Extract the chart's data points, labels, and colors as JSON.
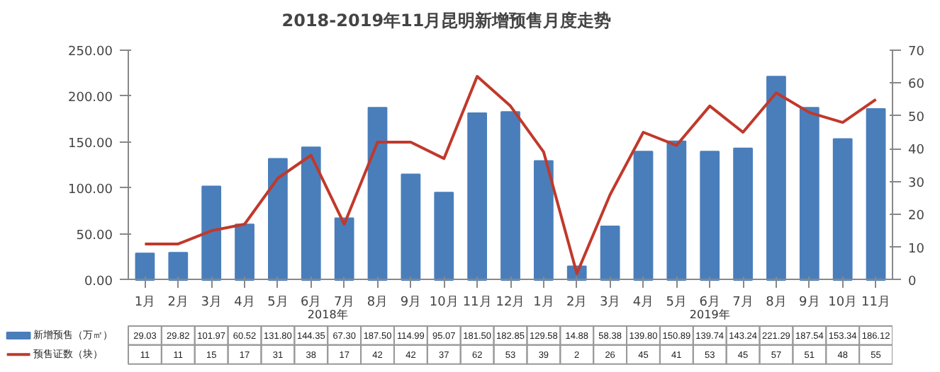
{
  "chart_data": {
    "type": "bar",
    "title": "2018-2019年11月昆明新增预售月度走势",
    "categories": [
      "1月",
      "2月",
      "3月",
      "4月",
      "5月",
      "6月",
      "7月",
      "8月",
      "9月",
      "10月",
      "11月",
      "12月",
      "1月",
      "2月",
      "3月",
      "4月",
      "5月",
      "6月",
      "7月",
      "8月",
      "9月",
      "10月",
      "11月"
    ],
    "series": [
      {
        "name": "新增预售（万㎡）",
        "color": "#4a7ebb",
        "values": [
          29.03,
          29.82,
          101.97,
          60.52,
          131.8,
          144.35,
          67.3,
          187.5,
          114.99,
          95.07,
          181.5,
          182.85,
          129.58,
          14.88,
          58.38,
          139.8,
          150.89,
          139.74,
          143.24,
          221.29,
          187.54,
          153.34,
          186.12
        ],
        "value_labels": [
          "29.03",
          "29.82",
          "101.97",
          "60.52",
          "131.80",
          "144.35",
          "67.30",
          "187.50",
          "114.99",
          "95.07",
          "181.50",
          "182.85",
          "129.58",
          "14.88",
          "58.38",
          "139.80",
          "150.89",
          "139.74",
          "143.24",
          "221.29",
          "187.54",
          "153.34",
          "186.12"
        ]
      },
      {
        "name": "预售证数（块）",
        "type": "line",
        "axis": "y2",
        "color": "#c0392b",
        "values": [
          11,
          11,
          15,
          17,
          31,
          38,
          17,
          42,
          42,
          37,
          62,
          53,
          39,
          2,
          26,
          45,
          41,
          53,
          45,
          57,
          51,
          48,
          55
        ],
        "value_labels": [
          "11",
          "11",
          "15",
          "17",
          "31",
          "38",
          "17",
          "42",
          "42",
          "37",
          "62",
          "53",
          "39",
          "2",
          "26",
          "45",
          "41",
          "53",
          "45",
          "57",
          "51",
          "48",
          "55"
        ]
      }
    ],
    "ylim": [
      0,
      250
    ],
    "yticks": [
      {
        "value": 0,
        "label": "0.00"
      },
      {
        "value": 50,
        "label": "50.00"
      },
      {
        "value": 100,
        "label": "100.00"
      },
      {
        "value": 150,
        "label": "150.00"
      },
      {
        "value": 200,
        "label": "200.00"
      },
      {
        "value": 250,
        "label": "250.00"
      }
    ],
    "y2lim": [
      0,
      70
    ],
    "y2ticks": [
      0,
      10,
      20,
      30,
      40,
      50,
      60,
      70
    ],
    "annotations": [
      "2018年",
      "2019年"
    ],
    "legend": "bottom",
    "grid": false
  }
}
